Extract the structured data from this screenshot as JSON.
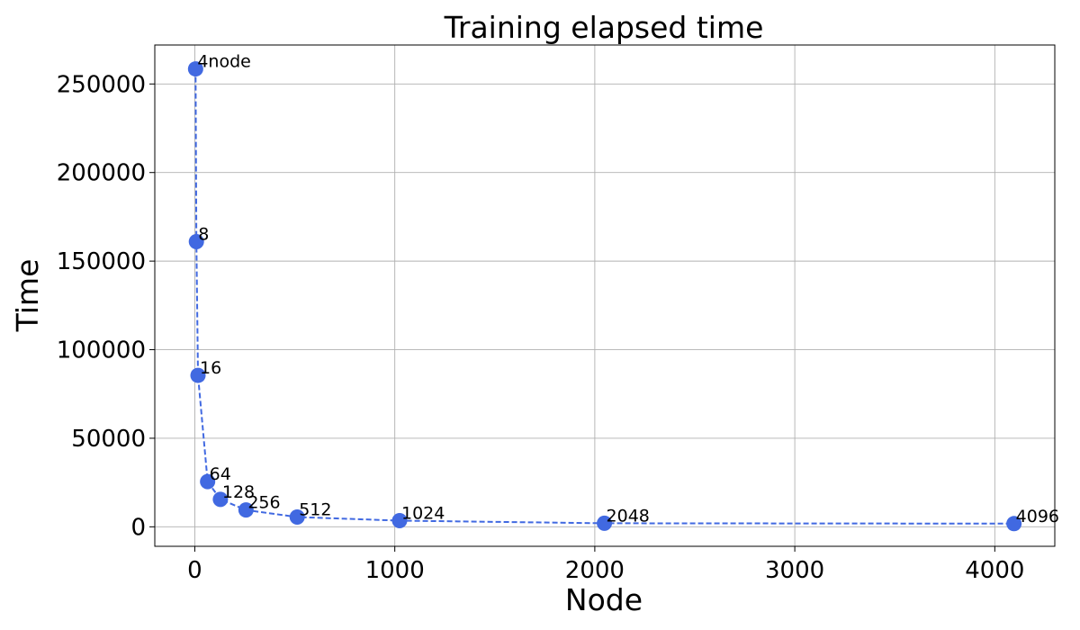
{
  "chart_data": {
    "type": "line",
    "title": "Training elapsed time",
    "xlabel": "Node",
    "ylabel": "Time",
    "xlim": [
      -200,
      4300
    ],
    "ylim": [
      -11000,
      272000
    ],
    "xticks": [
      0,
      1000,
      2000,
      3000,
      4000
    ],
    "yticks": [
      0,
      50000,
      100000,
      150000,
      200000,
      250000
    ],
    "grid": true,
    "line_style": "dashed",
    "color": "#4169e1",
    "series": [
      {
        "x": [
          4,
          8,
          16,
          64,
          128,
          256,
          512,
          1024,
          2048,
          4096
        ],
        "y": [
          258500,
          161000,
          85500,
          25500,
          15500,
          9500,
          5500,
          3500,
          2000,
          1800
        ],
        "labels": [
          "4node",
          "8",
          "16",
          "64",
          "128",
          "256",
          "512",
          "1024",
          "2048",
          "4096"
        ]
      }
    ]
  }
}
